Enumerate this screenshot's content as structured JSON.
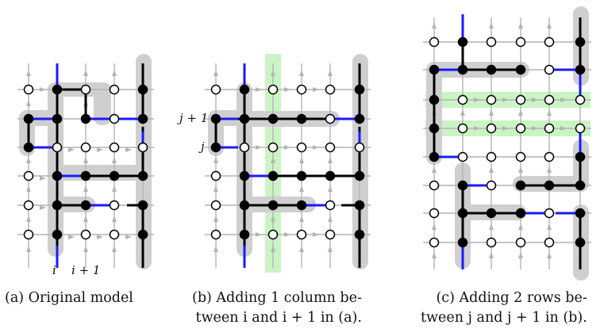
{
  "panels": [
    {
      "id": "a",
      "caption_line1": "(a) Original model",
      "caption_line2": "",
      "axis_label_i": "i",
      "axis_label_i_plus_1": "i + 1"
    },
    {
      "id": "b",
      "caption_line1": "(b) Adding 1 column be-",
      "caption_line2": "tween i and i + 1 in (a).",
      "row_label_j": "j",
      "row_label_j_plus_1": "j + 1"
    },
    {
      "id": "c",
      "caption_line1": "(c) Adding 2 rows be-",
      "caption_line2": "tween j and j + 1 in (b)."
    }
  ],
  "colors": {
    "grid_arrow": "#b4b4b4",
    "path": "#000000",
    "blue_edge": "#1a1aff",
    "shade": "#cfcfcf",
    "highlight": "#b8f0b0"
  }
}
